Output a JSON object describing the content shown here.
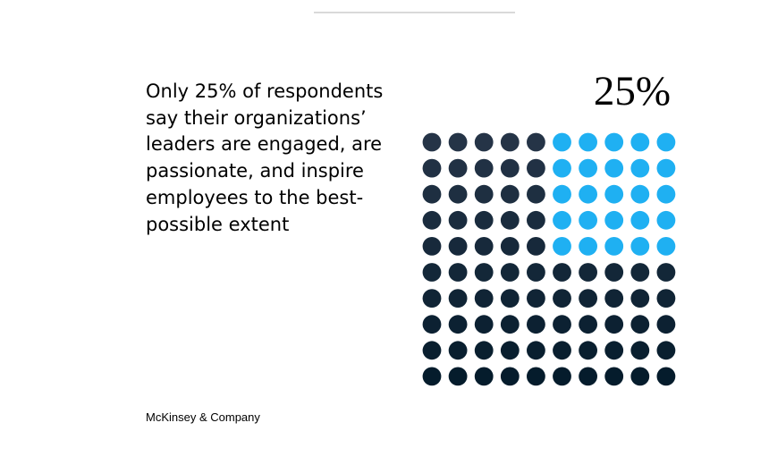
{
  "headline": "Only 25% of respondents\nsay their organizations’\nleaders are engaged, are\npassionate, and inspire\nemployees to the best-\npossible extent",
  "source": "McKinsey & Company",
  "colors": {
    "highlight": "#1fb0f2",
    "base_top": "#253447",
    "base_bottom": "#051c2c",
    "rule": "#d9d9d9"
  },
  "chart_data": {
    "type": "waffle",
    "value_label": "25%",
    "value": 25,
    "total": 100,
    "grid": {
      "rows": 10,
      "cols": 10
    },
    "highlight_block": {
      "rows": [
        1,
        5
      ],
      "cols": [
        6,
        10
      ]
    }
  }
}
